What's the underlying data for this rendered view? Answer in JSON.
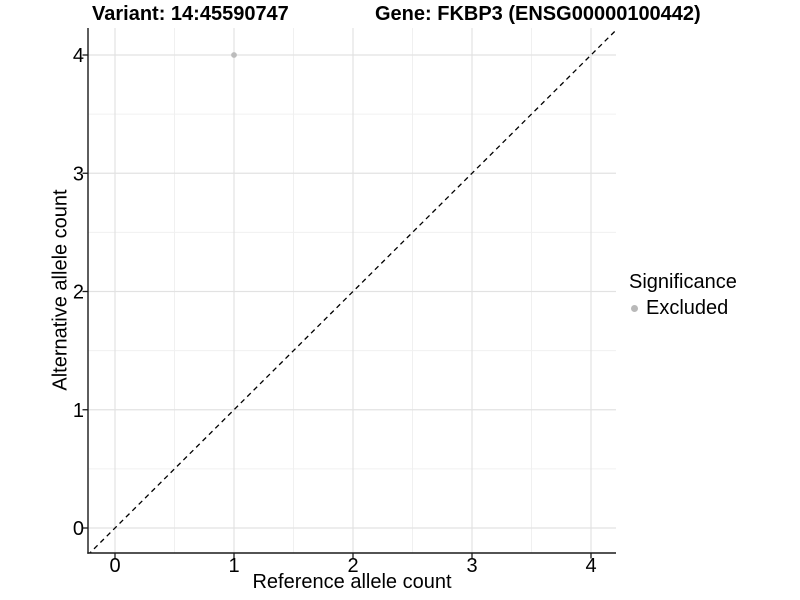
{
  "chart_data": {
    "type": "scatter",
    "title_left": "Variant: 14:45590747",
    "title_right": "Gene: FKBP3 (ENSG00000100442)",
    "xlabel": "Reference allele count",
    "ylabel": "Alternative allele count",
    "xlim": [
      -0.23,
      4.21
    ],
    "ylim": [
      -0.21,
      4.23
    ],
    "xticks": [
      0,
      1,
      2,
      3,
      4
    ],
    "yticks": [
      0,
      1,
      2,
      3,
      4
    ],
    "xminor": [
      0.5,
      1.5,
      2.5,
      3.5
    ],
    "yminor": [
      0.5,
      1.5,
      2.5,
      3.5
    ],
    "grid": "major+minor",
    "reference_line": {
      "type": "abline",
      "slope": 1,
      "intercept": 0,
      "style": "dashed",
      "color": "#000000"
    },
    "series": [
      {
        "name": "Excluded",
        "marker": "circle",
        "color": "#bcbcbc",
        "points": [
          {
            "x": 1,
            "y": 4
          }
        ]
      }
    ],
    "legend": {
      "title": "Significance",
      "position": "right",
      "items": [
        {
          "label": "Excluded",
          "color": "#b9b9b9",
          "marker": "circle"
        }
      ]
    }
  },
  "colors": {
    "background": "#ffffff",
    "grid_major": "#e2e2e2",
    "grid_minor": "#f0f0f0",
    "axis": "#1a1a1a",
    "tick": "#1a1a1a",
    "text": "#000000"
  }
}
